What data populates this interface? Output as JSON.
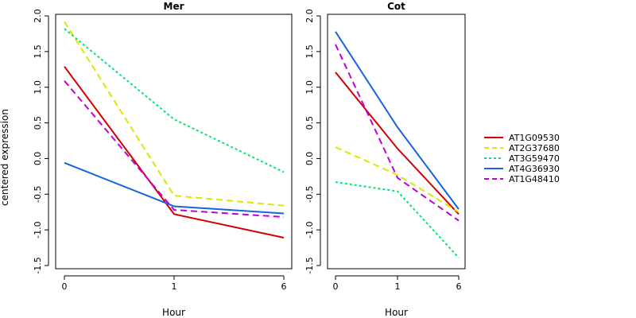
{
  "chart_data": {
    "type": "line",
    "ylabel": "centered expression",
    "xlabel": "Hour",
    "x": [
      "0",
      "1",
      "6"
    ],
    "ylim": [
      -1.5,
      2.0
    ],
    "yticks": [
      "-1.5",
      "-1.0",
      "-0.5",
      "0.0",
      "0.5",
      "1.0",
      "1.5",
      "2.0"
    ],
    "legend_position": "right",
    "grid": false,
    "panels": [
      {
        "title": "Mer",
        "series": [
          {
            "name": "AT1G09530",
            "values": [
              1.29,
              -0.78,
              -1.11
            ]
          },
          {
            "name": "AT2G37680",
            "values": [
              1.92,
              -0.52,
              -0.66
            ]
          },
          {
            "name": "AT3G59470",
            "values": [
              1.82,
              0.55,
              -0.19
            ]
          },
          {
            "name": "AT4G36930",
            "values": [
              -0.06,
              -0.67,
              -0.77
            ]
          },
          {
            "name": "AT1G48410",
            "values": [
              1.09,
              -0.72,
              -0.82
            ]
          }
        ]
      },
      {
        "title": "Cot",
        "series": [
          {
            "name": "AT1G09530",
            "values": [
              1.21,
              0.14,
              -0.78
            ]
          },
          {
            "name": "AT2G37680",
            "values": [
              0.16,
              -0.23,
              -0.75
            ]
          },
          {
            "name": "AT3G59470",
            "values": [
              -0.33,
              -0.46,
              -1.39
            ]
          },
          {
            "name": "AT4G36930",
            "values": [
              1.78,
              0.44,
              -0.71
            ]
          },
          {
            "name": "AT1G48410",
            "values": [
              1.6,
              -0.27,
              -0.87
            ]
          }
        ]
      }
    ],
    "series_styles": [
      {
        "name": "AT1G09530",
        "color": "#d40000",
        "dash": "solid"
      },
      {
        "name": "AT2G37680",
        "color": "#dfe600",
        "dash": "dashed"
      },
      {
        "name": "AT3G59470",
        "color": "#00e676",
        "dash": "dotted"
      },
      {
        "name": "AT4G36930",
        "color": "#1565e0",
        "dash": "solid"
      },
      {
        "name": "AT1G48410",
        "color": "#c000d8",
        "dash": "dashed"
      }
    ]
  }
}
